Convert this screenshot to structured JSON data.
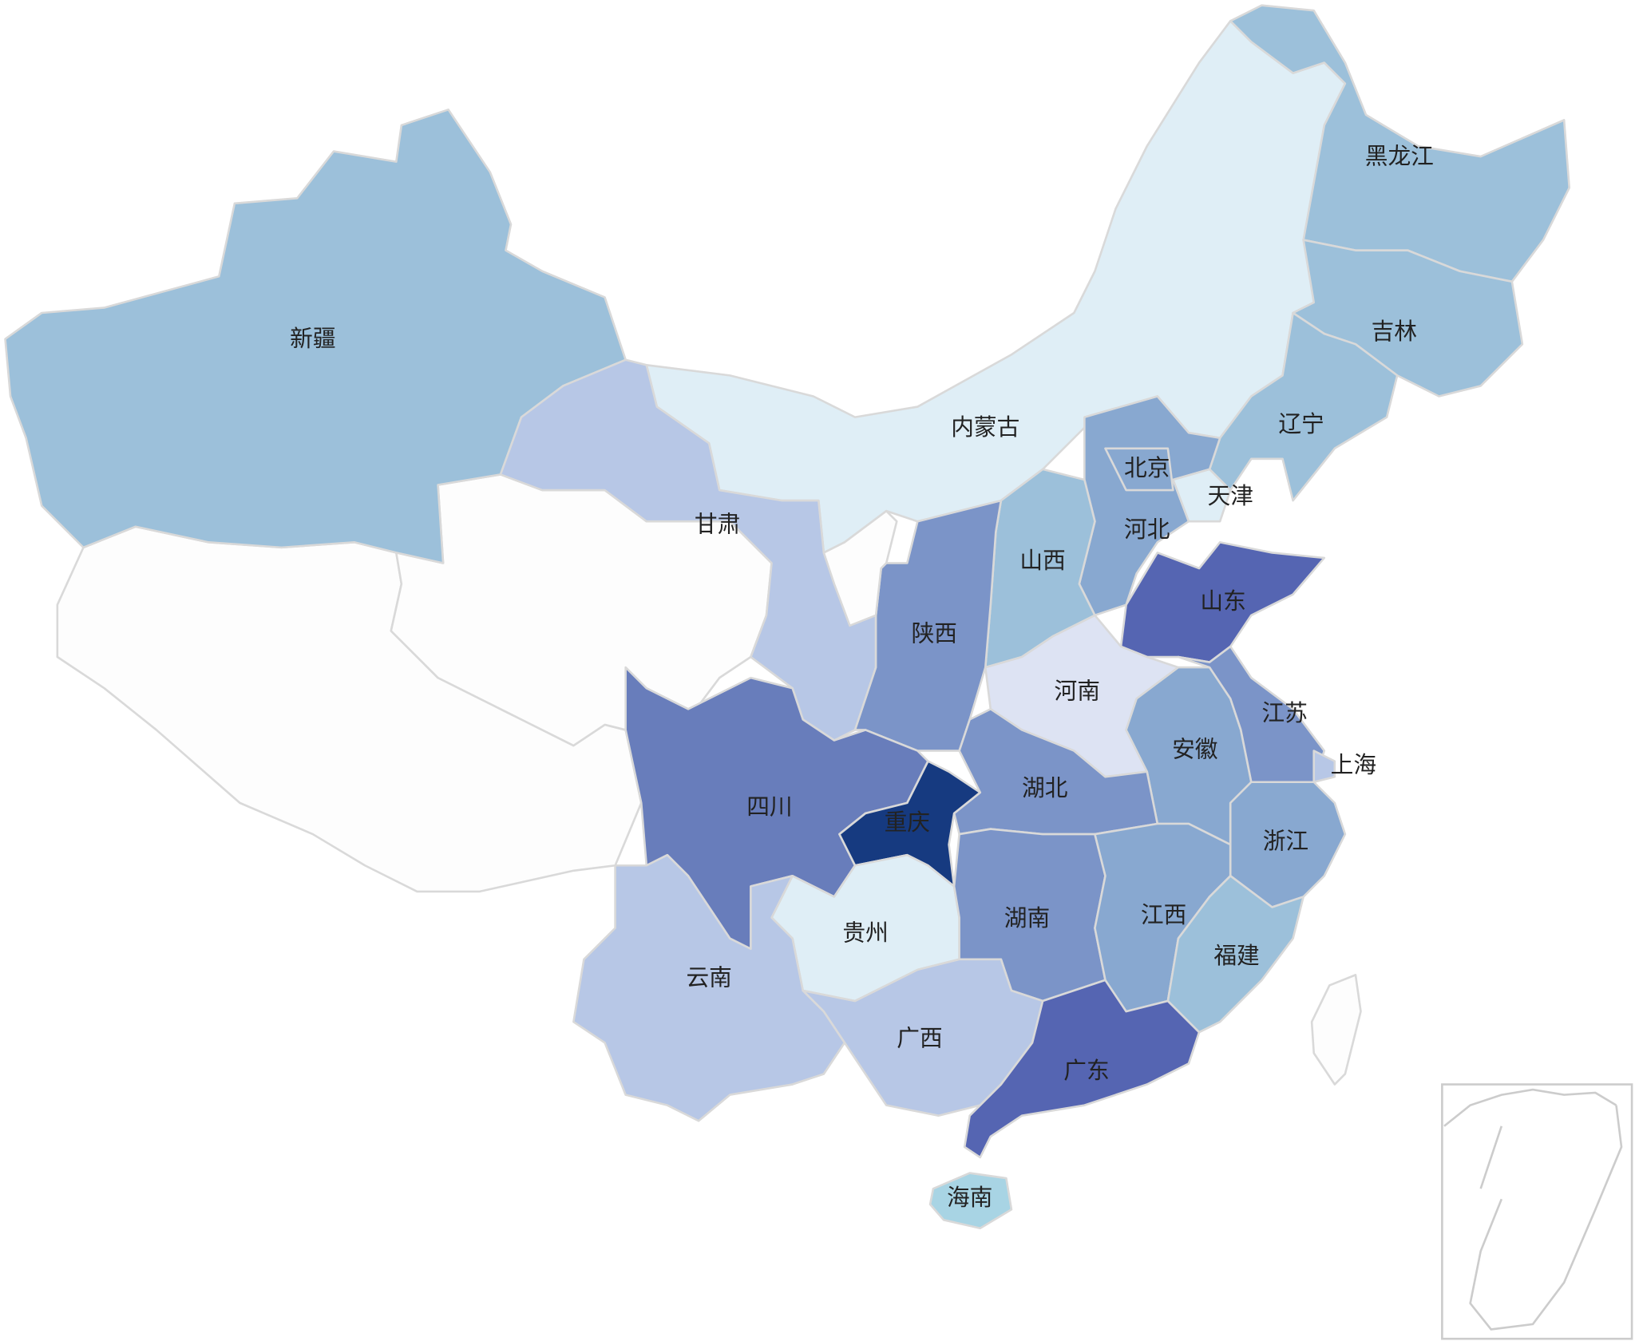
{
  "provinces": [
    {
      "name": "新疆",
      "color": "#9cc0da"
    },
    {
      "name": "内蒙古",
      "color": "#dfeef6"
    },
    {
      "name": "黑龙江",
      "color": "#9cc0da"
    },
    {
      "name": "吉林",
      "color": "#9cc0da"
    },
    {
      "name": "辽宁",
      "color": "#9cc0da"
    },
    {
      "name": "甘肃",
      "color": "#b7c7e6"
    },
    {
      "name": "河北",
      "color": "#88a8d0"
    },
    {
      "name": "北京",
      "color": "#88a8d0"
    },
    {
      "name": "天津",
      "color": "#dfeef6"
    },
    {
      "name": "山西",
      "color": "#9cc0da"
    },
    {
      "name": "山东",
      "color": "#5565b2"
    },
    {
      "name": "陕西",
      "color": "#7b94c8"
    },
    {
      "name": "河南",
      "color": "#dde3f3"
    },
    {
      "name": "安徽",
      "color": "#88a8d0"
    },
    {
      "name": "江苏",
      "color": "#7b94c8"
    },
    {
      "name": "上海",
      "color": "#b7c7e6"
    },
    {
      "name": "湖北",
      "color": "#7b94c8"
    },
    {
      "name": "四川",
      "color": "#687dbb"
    },
    {
      "name": "重庆",
      "color": "#163a80"
    },
    {
      "name": "贵州",
      "color": "#dfeef6"
    },
    {
      "name": "云南",
      "color": "#b7c7e6"
    },
    {
      "name": "湖南",
      "color": "#7b94c8"
    },
    {
      "name": "江西",
      "color": "#88a8d0"
    },
    {
      "name": "浙江",
      "color": "#88a8d0"
    },
    {
      "name": "福建",
      "color": "#9cc0da"
    },
    {
      "name": "广西",
      "color": "#b7c7e6"
    },
    {
      "name": "广东",
      "color": "#5565b2"
    },
    {
      "name": "海南",
      "color": "#a8d4e4"
    }
  ]
}
